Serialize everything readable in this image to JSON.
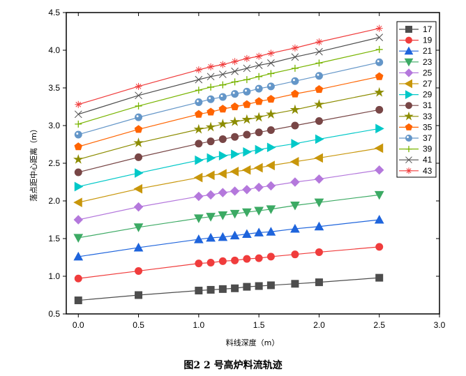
{
  "chart_data": {
    "type": "line",
    "title": "",
    "caption": "图2   2 号高炉料流轨迹",
    "xlabel": "料线深度（m）",
    "ylabel": "落点距中心距离（m）",
    "xlim": [
      -0.1,
      3.0
    ],
    "ylim": [
      0.5,
      4.5
    ],
    "xticks": [
      "0.0",
      "0.5",
      "1.0",
      "1.5",
      "2.0",
      "2.5",
      "3.0"
    ],
    "yticks": [
      "0.5",
      "1.0",
      "1.5",
      "2.0",
      "2.5",
      "3.0",
      "3.5",
      "4.0",
      "4.5"
    ],
    "grid": false,
    "legend_position": "top-right",
    "x": [
      0,
      0.5,
      1.0,
      1.1,
      1.2,
      1.3,
      1.4,
      1.5,
      1.6,
      1.8,
      2.0,
      2.5
    ],
    "series": [
      {
        "name": "17",
        "color": "#4d4d4d",
        "marker": "square",
        "values": [
          0.68,
          0.75,
          0.81,
          0.82,
          0.83,
          0.84,
          0.86,
          0.87,
          0.88,
          0.9,
          0.92,
          0.98
        ]
      },
      {
        "name": "19",
        "color": "#f03c3c",
        "marker": "circle",
        "values": [
          0.97,
          1.07,
          1.17,
          1.18,
          1.2,
          1.21,
          1.23,
          1.24,
          1.26,
          1.29,
          1.32,
          1.39
        ]
      },
      {
        "name": "21",
        "color": "#1e64dc",
        "marker": "triangle-up",
        "values": [
          1.26,
          1.38,
          1.49,
          1.51,
          1.52,
          1.54,
          1.56,
          1.58,
          1.59,
          1.63,
          1.66,
          1.75
        ]
      },
      {
        "name": "23",
        "color": "#3caa64",
        "marker": "triangle-down",
        "values": [
          1.51,
          1.65,
          1.77,
          1.79,
          1.81,
          1.83,
          1.85,
          1.87,
          1.89,
          1.94,
          1.98,
          2.08
        ]
      },
      {
        "name": "25",
        "color": "#b478dc",
        "marker": "diamond",
        "values": [
          1.75,
          1.92,
          2.06,
          2.08,
          2.11,
          2.13,
          2.15,
          2.18,
          2.2,
          2.25,
          2.29,
          2.41
        ]
      },
      {
        "name": "27",
        "color": "#c8960a",
        "marker": "triangle-left",
        "values": [
          1.98,
          2.16,
          2.31,
          2.34,
          2.36,
          2.39,
          2.41,
          2.44,
          2.47,
          2.52,
          2.57,
          2.7
        ]
      },
      {
        "name": "29",
        "color": "#00c8c8",
        "marker": "triangle-right",
        "values": [
          2.19,
          2.37,
          2.54,
          2.57,
          2.6,
          2.62,
          2.65,
          2.68,
          2.71,
          2.76,
          2.82,
          2.96
        ]
      },
      {
        "name": "31",
        "color": "#784646",
        "marker": "circle",
        "values": [
          2.38,
          2.58,
          2.76,
          2.79,
          2.82,
          2.85,
          2.88,
          2.91,
          2.94,
          3.0,
          3.06,
          3.21
        ]
      },
      {
        "name": "33",
        "color": "#8c8c00",
        "marker": "star",
        "values": [
          2.55,
          2.77,
          2.95,
          2.98,
          3.02,
          3.05,
          3.08,
          3.11,
          3.15,
          3.21,
          3.28,
          3.44
        ]
      },
      {
        "name": "35",
        "color": "#ff6400",
        "marker": "pentagon",
        "values": [
          2.72,
          2.95,
          3.15,
          3.18,
          3.22,
          3.25,
          3.28,
          3.32,
          3.35,
          3.42,
          3.48,
          3.65
        ]
      },
      {
        "name": "37",
        "color": "#6496c8",
        "marker": "sphere",
        "values": [
          2.88,
          3.11,
          3.31,
          3.35,
          3.38,
          3.42,
          3.45,
          3.49,
          3.52,
          3.59,
          3.66,
          3.84
        ]
      },
      {
        "name": "39",
        "color": "#78b400",
        "marker": "plus",
        "values": [
          3.02,
          3.26,
          3.47,
          3.51,
          3.54,
          3.58,
          3.61,
          3.65,
          3.69,
          3.76,
          3.83,
          4.01
        ]
      },
      {
        "name": "41",
        "color": "#4d4d4d",
        "marker": "x",
        "values": [
          3.15,
          3.4,
          3.61,
          3.65,
          3.68,
          3.72,
          3.76,
          3.8,
          3.83,
          3.91,
          3.98,
          4.17
        ]
      },
      {
        "name": "43",
        "color": "#f03c3c",
        "marker": "asterisk",
        "values": [
          3.28,
          3.52,
          3.74,
          3.78,
          3.81,
          3.85,
          3.89,
          3.92,
          3.96,
          4.03,
          4.11,
          4.29
        ]
      }
    ]
  }
}
